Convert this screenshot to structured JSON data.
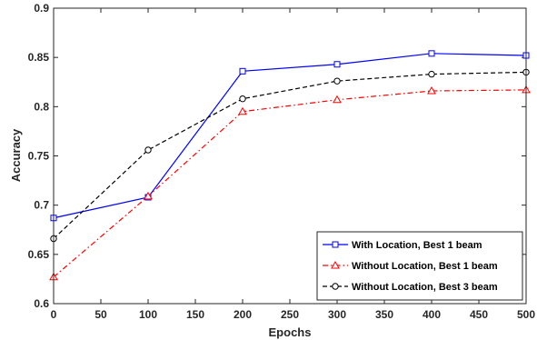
{
  "chart_data": {
    "type": "line",
    "xlabel": "Epochs",
    "ylabel": "Accuracy",
    "xlim": [
      0,
      500
    ],
    "ylim": [
      0.6,
      0.9
    ],
    "xticks": [
      "0",
      "50",
      "100",
      "150",
      "200",
      "250",
      "300",
      "350",
      "400",
      "450",
      "500"
    ],
    "yticks": [
      "0.6",
      "0.65",
      "0.7",
      "0.75",
      "0.8",
      "0.85",
      "0.9"
    ],
    "x": [
      0,
      100,
      200,
      300,
      400,
      500
    ],
    "grid": false,
    "legend": "bottom-right",
    "series": [
      {
        "name": "With Location, Best 1 beam",
        "values": [
          0.687,
          0.708,
          0.836,
          0.843,
          0.854,
          0.852
        ],
        "color": "#0000ff",
        "dash": "solid",
        "marker": "square"
      },
      {
        "name": "Without Location, Best 1 beam",
        "values": [
          0.627,
          0.709,
          0.795,
          0.807,
          0.816,
          0.817
        ],
        "color": "#ff0000",
        "dash": "dashdot",
        "marker": "triangle"
      },
      {
        "name": "Without Location, Best 3 beam",
        "values": [
          0.666,
          0.756,
          0.808,
          0.826,
          0.833,
          0.835
        ],
        "color": "#000000",
        "dash": "dashed",
        "marker": "circle"
      }
    ]
  }
}
